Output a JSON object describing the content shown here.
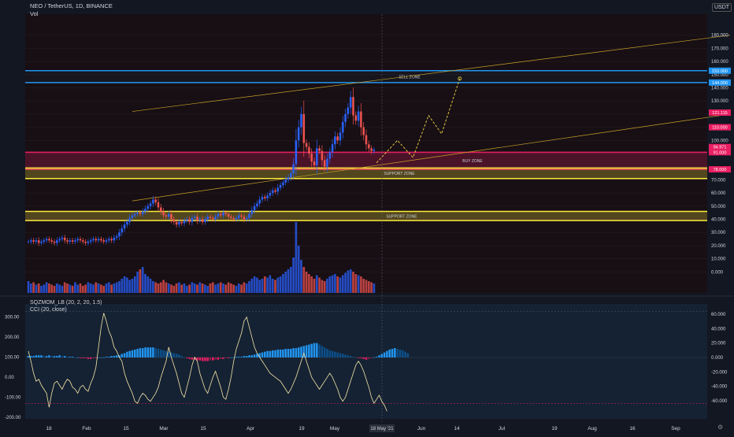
{
  "header": {
    "symbol_line": "NEO / TetherUS, 1D, BINANCE",
    "vol_label": "Vol",
    "currency": "USDT",
    "indicator1": "SQZMOM_LB (20, 2, 20, 1.5)",
    "indicator2": "CCI (20, close)"
  },
  "colors": {
    "background": "#131722",
    "up": "#2962ff",
    "down": "#ef5350",
    "sell_zone": "#2196f3",
    "buy_zone": "#e91e63",
    "support_zone": "#ffeb3b",
    "trendline": "#c9a227",
    "cci": "#f5e6a8"
  },
  "chart_data": [
    {
      "type": "candlestick",
      "title": "NEO / TetherUS, 1D, BINANCE",
      "price_axis": [
        "180.000",
        "170.000",
        "160.000",
        "150.000",
        "140.000",
        "130.000",
        "110.000",
        "100.000",
        "90.000",
        "70.000",
        "60.000",
        "50.000",
        "40.000",
        "30.000",
        "20.000",
        "10.000",
        "0.000"
      ],
      "price_badges": {
        "upper": [
          "153.000",
          "144.000"
        ],
        "middle": [
          "121.115",
          "110.000",
          "94.971",
          "91.000"
        ],
        "lower": [
          "78.000"
        ]
      },
      "ylim": [
        -10,
        190
      ],
      "time_axis": [
        "18",
        "Feb",
        "15",
        "Mar",
        "15",
        "Apr",
        "19",
        "May",
        "Jun",
        "14",
        "Jul",
        "19",
        "Aug",
        "16",
        "Sep"
      ],
      "current_date_label": "18 May '21",
      "zones": [
        {
          "label": "SELL ZONE",
          "low": 144,
          "high": 153,
          "color": "#2196f3"
        },
        {
          "label": "BUY ZONE",
          "low": 78,
          "high": 91,
          "color": "#e91e63"
        },
        {
          "label": "SUPPORT ZONE",
          "low": 71,
          "high": 79,
          "color": "#ffeb3b"
        },
        {
          "label": "SUPPORT ZONE",
          "low": 39,
          "high": 46,
          "color": "#ffeb3b"
        }
      ],
      "close_series": [
        23,
        24,
        23,
        24,
        22,
        23,
        24,
        25,
        24,
        23,
        22,
        24,
        25,
        26,
        24,
        23,
        24,
        23,
        24,
        25,
        24,
        23,
        22,
        23,
        24,
        25,
        24,
        25,
        24,
        23,
        24,
        25,
        24,
        26,
        27,
        30,
        33,
        36,
        38,
        41,
        43,
        44,
        45,
        44,
        46,
        48,
        50,
        52,
        55,
        53,
        49,
        46,
        43,
        42,
        44,
        40,
        38,
        36,
        38,
        37,
        39,
        40,
        38,
        41,
        42,
        39,
        40,
        38,
        40,
        42,
        41,
        40,
        42,
        44,
        43,
        45,
        44,
        42,
        41,
        40,
        41,
        43,
        42,
        40,
        41,
        44,
        47,
        50,
        52,
        55,
        57,
        56,
        58,
        60,
        62,
        61,
        64,
        66,
        68,
        70,
        72,
        75,
        82,
        100,
        110,
        120,
        98,
        95,
        90,
        84,
        81,
        94,
        92,
        85,
        80,
        86,
        91,
        97,
        103,
        100,
        106,
        114,
        120,
        125,
        133,
        119,
        115,
        122,
        110,
        104,
        97,
        94,
        92,
        93
      ],
      "volume": [
        10,
        8,
        9,
        7,
        8,
        6,
        7,
        9,
        8,
        7,
        6,
        8,
        7,
        6,
        9,
        8,
        7,
        6,
        9,
        7,
        8,
        6,
        7,
        9,
        8,
        7,
        9,
        8,
        7,
        6,
        8,
        9,
        7,
        8,
        9,
        10,
        12,
        14,
        13,
        11,
        12,
        14,
        18,
        20,
        22,
        16,
        14,
        12,
        10,
        9,
        8,
        9,
        11,
        9,
        8,
        7,
        6,
        8,
        9,
        7,
        8,
        6,
        7,
        9,
        8,
        7,
        9,
        8,
        7,
        6,
        8,
        9,
        7,
        8,
        9,
        8,
        7,
        9,
        8,
        7,
        6,
        8,
        7,
        9,
        8,
        10,
        12,
        14,
        13,
        11,
        12,
        14,
        13,
        15,
        12,
        11,
        13,
        14,
        16,
        18,
        20,
        22,
        30,
        60,
        40,
        28,
        22,
        18,
        16,
        14,
        12,
        15,
        13,
        11,
        10,
        12,
        14,
        15,
        16,
        14,
        13,
        15,
        17,
        19,
        20,
        18,
        16,
        15,
        14,
        12,
        11,
        10,
        9,
        8
      ],
      "projection": [
        {
          "i": 134,
          "price": 83
        },
        {
          "i": 142,
          "price": 100
        },
        {
          "i": 148,
          "price": 87
        },
        {
          "i": 154,
          "price": 119
        },
        {
          "i": 159,
          "price": 105
        },
        {
          "i": 166,
          "price": 147
        }
      ],
      "trendlines": [
        {
          "from": {
            "i": 40,
            "price": 122
          },
          "to": {
            "i": 270,
            "price": 180
          }
        },
        {
          "from": {
            "i": 40,
            "price": 54
          },
          "to": {
            "i": 270,
            "price": 120
          }
        }
      ]
    },
    {
      "type": "bar",
      "title": "SQZMOM_LB (20, 2, 20, 1.5)",
      "ylim": [
        -70,
        70
      ],
      "axis_ticks": [
        "60.000",
        "40.000",
        "20.000",
        "0.000",
        "-20.000",
        "-40.000",
        "-60.000"
      ],
      "left_axis_ticks": [
        "300.00",
        "200.00",
        "100.00",
        "0.00",
        "-100.00",
        "-200.00"
      ],
      "momentum": [
        2,
        2,
        2,
        3,
        3,
        3,
        2,
        2,
        3,
        2,
        2,
        2,
        3,
        2,
        2,
        1,
        1,
        1,
        0,
        0,
        -1,
        -1,
        -1,
        -2,
        -2,
        -1,
        -1,
        0,
        0,
        0,
        1,
        1,
        2,
        2,
        3,
        3,
        5,
        6,
        8,
        9,
        10,
        11,
        12,
        13,
        13,
        14,
        14,
        14,
        14,
        13,
        12,
        11,
        10,
        9,
        8,
        7,
        6,
        5,
        4,
        2,
        0,
        -1,
        -2,
        -3,
        -3,
        -4,
        -4,
        -5,
        -5,
        -5,
        -4,
        -4,
        -3,
        -3,
        -2,
        -2,
        -1,
        -1,
        0,
        0,
        1,
        1,
        1,
        2,
        2,
        3,
        3,
        4,
        5,
        6,
        7,
        8,
        9,
        9,
        10,
        10,
        11,
        11,
        11,
        12,
        12,
        12,
        13,
        13,
        14,
        15,
        16,
        17,
        18,
        19,
        20,
        20,
        18,
        16,
        14,
        12,
        10,
        9,
        8,
        7,
        6,
        5,
        4,
        3,
        2,
        1,
        0,
        -1,
        -1,
        -2,
        -3,
        -2,
        -1,
        0,
        1,
        3,
        5,
        7,
        9,
        11,
        12,
        13,
        12,
        11,
        10,
        8,
        6
      ],
      "cci": [
        130,
        80,
        20,
        -20,
        -10,
        -40,
        -60,
        -80,
        -150,
        -80,
        -30,
        -20,
        -40,
        -60,
        -30,
        -10,
        -20,
        -50,
        -60,
        -80,
        -50,
        -40,
        -60,
        -70,
        -30,
        0,
        50,
        150,
        250,
        320,
        280,
        230,
        200,
        150,
        130,
        100,
        80,
        20,
        -20,
        -50,
        -80,
        -120,
        -130,
        -100,
        -80,
        -90,
        -110,
        -120,
        -100,
        -80,
        -50,
        0,
        40,
        80,
        150,
        100,
        60,
        20,
        -30,
        -80,
        -100,
        -50,
        0,
        60,
        100,
        80,
        20,
        -20,
        -60,
        -80,
        -40,
        0,
        30,
        -10,
        -50,
        -100,
        -110,
        -60,
        0,
        80,
        140,
        180,
        220,
        280,
        300,
        250,
        200,
        150,
        120,
        100,
        80,
        60,
        40,
        20,
        10,
        0,
        -10,
        -20,
        -40,
        -60,
        -80,
        -60,
        -30,
        0,
        40,
        80,
        120,
        80,
        40,
        0,
        -20,
        -40,
        -60,
        -40,
        -20,
        0,
        20,
        0,
        -30,
        -60,
        -100,
        -120,
        -100,
        -60,
        -20,
        20,
        60,
        80,
        60,
        30,
        -10,
        -50,
        -100,
        -130,
        -110,
        -90,
        -120,
        -140,
        -170
      ],
      "cci_ticks": [
        "300.00",
        "200.00",
        "100.00",
        "0.00",
        "-100.00",
        "-200.00"
      ]
    }
  ]
}
